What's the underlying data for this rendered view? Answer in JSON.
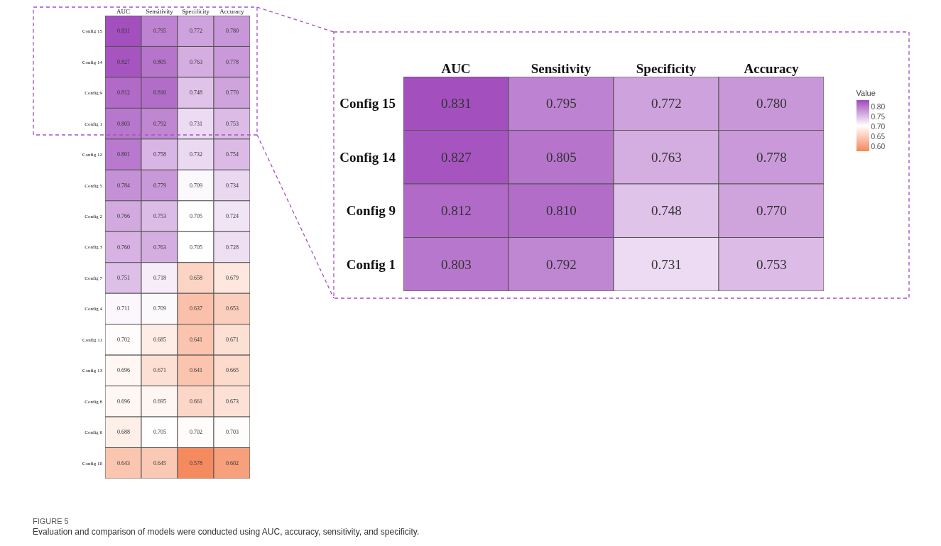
{
  "chart_data": [
    {
      "type": "heatmap",
      "categories": [
        "AUC",
        "Sensitivity",
        "Specificity",
        "Accuracy"
      ],
      "y_categories": [
        "Config 15",
        "Config 14",
        "Config 9",
        "Config 1",
        "Config 12",
        "Config 5",
        "Config 2",
        "Config 3",
        "Config 7",
        "Config 4",
        "Config 11",
        "Config 13",
        "Config 8",
        "Config 6",
        "Config 10"
      ],
      "cells": [
        [
          0.831,
          0.795,
          0.772,
          0.78
        ],
        [
          0.827,
          0.805,
          0.763,
          0.778
        ],
        [
          0.812,
          0.81,
          0.748,
          0.77
        ],
        [
          0.803,
          0.792,
          0.731,
          0.753
        ],
        [
          0.801,
          0.758,
          0.732,
          0.754
        ],
        [
          0.784,
          0.779,
          0.709,
          0.734
        ],
        [
          0.766,
          0.753,
          0.705,
          0.724
        ],
        [
          0.76,
          0.763,
          0.705,
          0.728
        ],
        [
          0.751,
          0.718,
          0.658,
          0.679
        ],
        [
          0.711,
          0.709,
          0.637,
          0.653
        ],
        [
          0.702,
          0.685,
          0.641,
          0.671
        ],
        [
          0.696,
          0.671,
          0.641,
          0.665
        ],
        [
          0.696,
          0.695,
          0.661,
          0.673
        ],
        [
          0.688,
          0.705,
          0.702,
          0.703
        ],
        [
          0.643,
          0.645,
          0.578,
          0.602
        ]
      ],
      "cell_labels": [
        [
          "0.831",
          "0.795",
          "0.772",
          "0.780"
        ],
        [
          "0.827",
          "0.805",
          "0.763",
          "0.778"
        ],
        [
          "0.812",
          "0.810",
          "0.748",
          "0.770"
        ],
        [
          "0.803",
          "0.792",
          "0.731",
          "0.753"
        ],
        [
          "0.801",
          "0.758",
          "0.732",
          "0.754"
        ],
        [
          "0.784",
          "0.779",
          "0.709",
          "0.734"
        ],
        [
          "0.766",
          "0.753",
          "0.705",
          "0.724"
        ],
        [
          "0.760",
          "0.763",
          "0.705",
          "0.728"
        ],
        [
          "0.751",
          "0.718",
          "0.658",
          "0.679"
        ],
        [
          "0.711",
          "0.709",
          "0.637",
          "0.653"
        ],
        [
          "0.702",
          "0.685",
          "0.641",
          "0.671"
        ],
        [
          "0.696",
          "0.671",
          "0.641",
          "0.665"
        ],
        [
          "0.696",
          "0.695",
          "0.661",
          "0.673"
        ],
        [
          "0.688",
          "0.705",
          "0.702",
          "0.703"
        ],
        [
          "0.643",
          "0.645",
          "0.578",
          "0.602"
        ]
      ],
      "annotations": [
        "FIGURE 5",
        "Evaluation and comparison of models were conducted using AUC, accuracy, sensitivity, and specificity."
      ]
    },
    {
      "type": "heatmap",
      "categories": [
        "AUC",
        "Sensitivity",
        "Specificity",
        "Accuracy"
      ],
      "y_categories": [
        "Config 15",
        "Config 14",
        "Config 9",
        "Config 1"
      ],
      "cells": [
        [
          0.831,
          0.795,
          0.772,
          0.78
        ],
        [
          0.827,
          0.805,
          0.763,
          0.778
        ],
        [
          0.812,
          0.81,
          0.748,
          0.77
        ],
        [
          0.803,
          0.792,
          0.731,
          0.753
        ]
      ],
      "cell_labels": [
        [
          "0.831",
          "0.795",
          "0.772",
          "0.780"
        ],
        [
          "0.827",
          "0.805",
          "0.763",
          "0.778"
        ],
        [
          "0.812",
          "0.810",
          "0.748",
          "0.770"
        ],
        [
          "0.803",
          "0.792",
          "0.731",
          "0.753"
        ]
      ],
      "clim": [
        0.575,
        0.835
      ],
      "cticks": [
        {
          "value": 0.6,
          "label": "0.60"
        },
        {
          "value": 0.65,
          "label": "0.65"
        },
        {
          "value": 0.7,
          "label": "0.70"
        },
        {
          "value": 0.75,
          "label": "0.75"
        },
        {
          "value": 0.8,
          "label": "0.80"
        }
      ],
      "clabel": "Value",
      "colors": [
        "#f5875a",
        "#ffffff",
        "#a04abc"
      ]
    }
  ]
}
